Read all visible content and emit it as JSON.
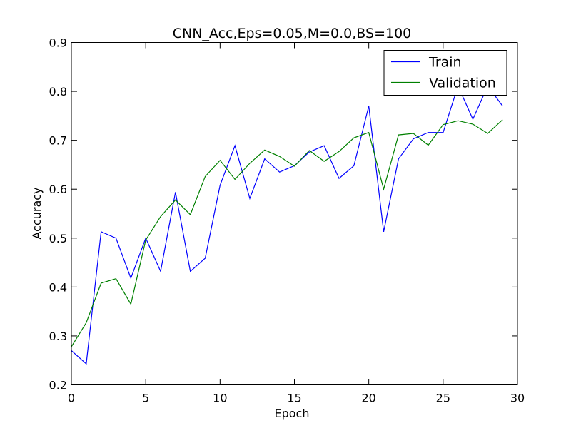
{
  "chart_data": {
    "type": "line",
    "title": "CNN_Acc,Eps=0.05,M=0.0,BS=100",
    "xlabel": "Epoch",
    "ylabel": "Accuracy",
    "xlim": [
      0,
      30
    ],
    "ylim": [
      0.2,
      0.9
    ],
    "xticks": [
      "0",
      "5",
      "10",
      "15",
      "20",
      "25",
      "30"
    ],
    "yticks": [
      "0.2",
      "0.3",
      "0.4",
      "0.5",
      "0.6",
      "0.7",
      "0.8",
      "0.9"
    ],
    "grid": false,
    "legend_position": "top-right",
    "x": [
      0,
      1,
      2,
      3,
      4,
      5,
      6,
      7,
      8,
      9,
      10,
      11,
      12,
      13,
      14,
      15,
      16,
      17,
      18,
      19,
      20,
      21,
      22,
      23,
      24,
      25,
      26,
      27,
      28,
      29
    ],
    "series": [
      {
        "name": "Train",
        "color": "#0000ff",
        "values": [
          0.27,
          0.243,
          0.513,
          0.5,
          0.418,
          0.5,
          0.432,
          0.594,
          0.432,
          0.459,
          0.608,
          0.689,
          0.581,
          0.662,
          0.635,
          0.648,
          0.676,
          0.689,
          0.622,
          0.648,
          0.77,
          0.513,
          0.662,
          0.703,
          0.716,
          0.716,
          0.811,
          0.743,
          0.811,
          0.77
        ]
      },
      {
        "name": "Validation",
        "color": "#008000",
        "values": [
          0.278,
          0.327,
          0.408,
          0.417,
          0.365,
          0.496,
          0.544,
          0.578,
          0.548,
          0.626,
          0.659,
          0.62,
          0.653,
          0.68,
          0.667,
          0.647,
          0.679,
          0.657,
          0.677,
          0.705,
          0.716,
          0.6,
          0.711,
          0.714,
          0.69,
          0.732,
          0.74,
          0.733,
          0.714,
          0.742
        ]
      }
    ]
  }
}
